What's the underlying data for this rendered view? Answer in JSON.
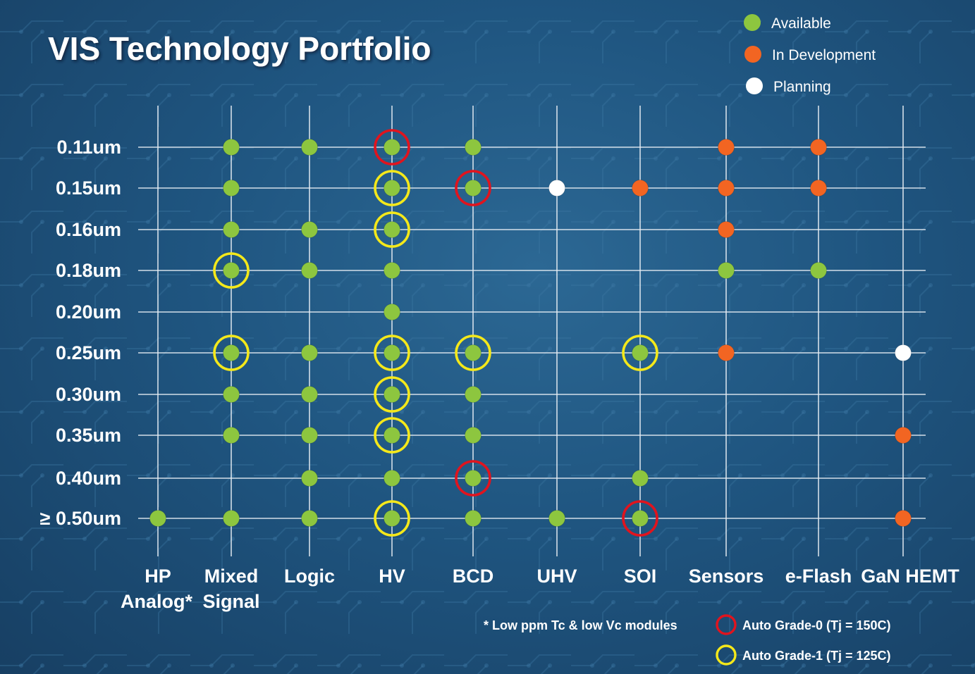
{
  "chart_data": {
    "type": "scatter",
    "title": "VIS Technology Portfolio",
    "categories": [
      "HP Analog*",
      "Mixed Signal",
      "Logic",
      "HV",
      "BCD",
      "UHV",
      "SOI",
      "Sensors",
      "e-Flash",
      "GaN HEMT"
    ],
    "category_lines": [
      [
        "HP",
        "Analog*"
      ],
      [
        "Mixed",
        "Signal"
      ],
      [
        "Logic"
      ],
      [
        "HV"
      ],
      [
        "BCD"
      ],
      [
        "UHV"
      ],
      [
        "SOI"
      ],
      [
        "Sensors"
      ],
      [
        "e-Flash"
      ],
      [
        "GaN HEMT"
      ]
    ],
    "nodes": [
      "0.11um",
      "0.15um",
      "0.16um",
      "0.18um",
      "0.20um",
      "0.25um",
      "0.30um",
      "0.35um",
      "0.40um",
      "≥ 0.50um"
    ],
    "status_legend": [
      {
        "key": "available",
        "label": "Available",
        "color": "#8dc63f"
      },
      {
        "key": "development",
        "label": "In Development",
        "color": "#f26522"
      },
      {
        "key": "planning",
        "label": "Planning",
        "color": "#ffffff"
      }
    ],
    "ring_legend": [
      {
        "key": "grade0",
        "label": "Auto Grade-0 (Tj = 150C)",
        "color": "#e0141e"
      },
      {
        "key": "grade1",
        "label": "Auto Grade-1 (Tj = 125C)",
        "color": "#f4e81a"
      }
    ],
    "footnote": "* Low ppm Tc & low Vc modules",
    "points": [
      {
        "tech": "HP Analog*",
        "node": "≥ 0.50um",
        "status": "available"
      },
      {
        "tech": "Mixed Signal",
        "node": "0.11um",
        "status": "available"
      },
      {
        "tech": "Mixed Signal",
        "node": "0.15um",
        "status": "available"
      },
      {
        "tech": "Mixed Signal",
        "node": "0.16um",
        "status": "available"
      },
      {
        "tech": "Mixed Signal",
        "node": "0.18um",
        "status": "available",
        "ring": "grade1"
      },
      {
        "tech": "Mixed Signal",
        "node": "0.25um",
        "status": "available",
        "ring": "grade1"
      },
      {
        "tech": "Mixed Signal",
        "node": "0.30um",
        "status": "available"
      },
      {
        "tech": "Mixed Signal",
        "node": "0.35um",
        "status": "available"
      },
      {
        "tech": "Mixed Signal",
        "node": "≥ 0.50um",
        "status": "available"
      },
      {
        "tech": "Logic",
        "node": "0.11um",
        "status": "available"
      },
      {
        "tech": "Logic",
        "node": "0.16um",
        "status": "available"
      },
      {
        "tech": "Logic",
        "node": "0.18um",
        "status": "available"
      },
      {
        "tech": "Logic",
        "node": "0.25um",
        "status": "available"
      },
      {
        "tech": "Logic",
        "node": "0.30um",
        "status": "available"
      },
      {
        "tech": "Logic",
        "node": "0.35um",
        "status": "available"
      },
      {
        "tech": "Logic",
        "node": "0.40um",
        "status": "available"
      },
      {
        "tech": "Logic",
        "node": "≥ 0.50um",
        "status": "available"
      },
      {
        "tech": "HV",
        "node": "0.11um",
        "status": "available",
        "ring": "grade0"
      },
      {
        "tech": "HV",
        "node": "0.15um",
        "status": "available",
        "ring": "grade1"
      },
      {
        "tech": "HV",
        "node": "0.16um",
        "status": "available",
        "ring": "grade1"
      },
      {
        "tech": "HV",
        "node": "0.18um",
        "status": "available"
      },
      {
        "tech": "HV",
        "node": "0.20um",
        "status": "available"
      },
      {
        "tech": "HV",
        "node": "0.25um",
        "status": "available",
        "ring": "grade1"
      },
      {
        "tech": "HV",
        "node": "0.30um",
        "status": "available",
        "ring": "grade1"
      },
      {
        "tech": "HV",
        "node": "0.35um",
        "status": "available",
        "ring": "grade1"
      },
      {
        "tech": "HV",
        "node": "0.40um",
        "status": "available"
      },
      {
        "tech": "HV",
        "node": "≥ 0.50um",
        "status": "available",
        "ring": "grade1"
      },
      {
        "tech": "BCD",
        "node": "0.11um",
        "status": "available"
      },
      {
        "tech": "BCD",
        "node": "0.15um",
        "status": "available",
        "ring": "grade0"
      },
      {
        "tech": "BCD",
        "node": "0.25um",
        "status": "available",
        "ring": "grade1"
      },
      {
        "tech": "BCD",
        "node": "0.30um",
        "status": "available"
      },
      {
        "tech": "BCD",
        "node": "0.35um",
        "status": "available"
      },
      {
        "tech": "BCD",
        "node": "0.40um",
        "status": "available",
        "ring": "grade0"
      },
      {
        "tech": "BCD",
        "node": "≥ 0.50um",
        "status": "available"
      },
      {
        "tech": "UHV",
        "node": "0.15um",
        "status": "planning"
      },
      {
        "tech": "UHV",
        "node": "≥ 0.50um",
        "status": "available"
      },
      {
        "tech": "SOI",
        "node": "0.15um",
        "status": "development"
      },
      {
        "tech": "SOI",
        "node": "0.25um",
        "status": "available",
        "ring": "grade1"
      },
      {
        "tech": "SOI",
        "node": "0.40um",
        "status": "available"
      },
      {
        "tech": "SOI",
        "node": "≥ 0.50um",
        "status": "available",
        "ring": "grade0"
      },
      {
        "tech": "Sensors",
        "node": "0.11um",
        "status": "development"
      },
      {
        "tech": "Sensors",
        "node": "0.15um",
        "status": "development"
      },
      {
        "tech": "Sensors",
        "node": "0.16um",
        "status": "development"
      },
      {
        "tech": "Sensors",
        "node": "0.18um",
        "status": "available"
      },
      {
        "tech": "Sensors",
        "node": "0.25um",
        "status": "development"
      },
      {
        "tech": "e-Flash",
        "node": "0.11um",
        "status": "development"
      },
      {
        "tech": "e-Flash",
        "node": "0.15um",
        "status": "development"
      },
      {
        "tech": "e-Flash",
        "node": "0.18um",
        "status": "available"
      },
      {
        "tech": "GaN HEMT",
        "node": "0.25um",
        "status": "planning"
      },
      {
        "tech": "GaN HEMT",
        "node": "0.35um",
        "status": "development"
      },
      {
        "tech": "GaN HEMT",
        "node": "≥ 0.50um",
        "status": "development"
      }
    ],
    "grid": true,
    "legend_position": "top-right"
  }
}
